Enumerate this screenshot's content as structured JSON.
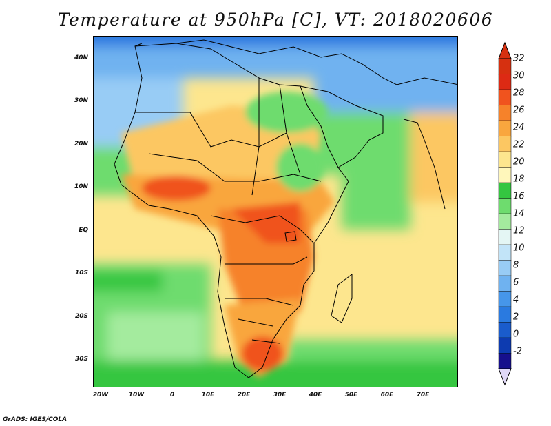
{
  "title": "Temperature at 950hPa [C], VT: 2018020606",
  "credit": "GrADS: IGES/COLA",
  "map": {
    "lat_labels": [
      "40N",
      "30N",
      "20N",
      "10N",
      "EQ",
      "10S",
      "20S",
      "30S"
    ],
    "lon_labels": [
      "20W",
      "10W",
      "0",
      "10E",
      "20E",
      "30E",
      "40E",
      "50E",
      "60E",
      "70E"
    ],
    "lat_values": [
      40,
      30,
      20,
      10,
      0,
      -10,
      -20,
      -30
    ],
    "lon_values": [
      -20,
      -10,
      0,
      10,
      20,
      30,
      40,
      50,
      60,
      70
    ],
    "lon_range": [
      -22,
      80
    ],
    "lat_range": [
      -37,
      45
    ]
  },
  "colorbar": {
    "labels": [
      "32",
      "30",
      "28",
      "26",
      "24",
      "22",
      "20",
      "18",
      "16",
      "14",
      "12",
      "10",
      "8",
      "6",
      "4",
      "2",
      "0",
      "-2"
    ],
    "colors": [
      "#ffffff",
      "#e0d8f8",
      "#160f8c",
      "#0d3bb0",
      "#1a5ccc",
      "#2a7ae0",
      "#4696ea",
      "#6fb2f0",
      "#98ccf5",
      "#c2e4f8",
      "#e4f6f4",
      "#a4eb9e",
      "#6edc6e",
      "#34c640",
      "#fff7bb",
      "#fde68e",
      "#fcc762",
      "#f9a63e",
      "#f6822a",
      "#f0531e",
      "#dd2a14",
      "#d63010"
    ]
  }
}
